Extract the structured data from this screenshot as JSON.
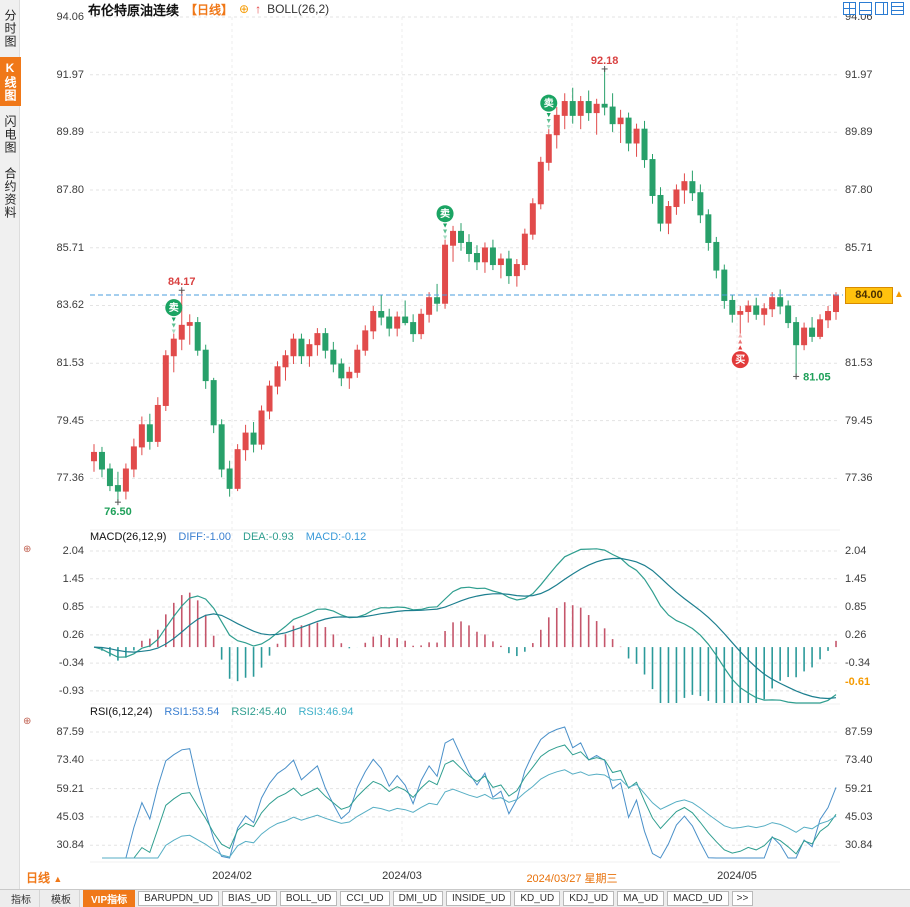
{
  "header": {
    "symbol": "布伦特原油连续",
    "period": "【日线】",
    "add_icon": "⊕",
    "trend_icon": "↑",
    "overlay_indicator": "BOLL(26,2)"
  },
  "sidebar": {
    "items": [
      {
        "label": "分时图",
        "selected": false
      },
      {
        "label": "K线图",
        "selected": true
      },
      {
        "label": "闪电图",
        "selected": false
      },
      {
        "label": "合约资料",
        "selected": false
      }
    ]
  },
  "header_layout_icons": [
    "layout-grid-icon",
    "layout-two-row-icon",
    "layout-two-col-icon",
    "layout-rows-icon"
  ],
  "x_axis": {
    "labels": [
      {
        "text": "2024/02",
        "highlight": false
      },
      {
        "text": "2024/03",
        "highlight": false
      },
      {
        "text": "2024/03/27 星期三",
        "highlight": true
      },
      {
        "text": "2024/05",
        "highlight": false
      }
    ]
  },
  "period_selector": {
    "label": "日线",
    "arrow": "▲"
  },
  "footer": {
    "tabs": [
      {
        "label": "指标"
      },
      {
        "label": "模板"
      }
    ],
    "vip_tab": "VIP指标",
    "indicators": [
      "BARUPDN_UD",
      "BIAS_UD",
      "BOLL_UD",
      "CCI_UD",
      "DMI_UD",
      "INSIDE_UD",
      "KD_UD",
      "KDJ_UD",
      "MA_UD",
      "MACD_UD"
    ],
    "more": ">>"
  },
  "theme": {
    "up": "#e14b4b",
    "down": "#28a06a",
    "sell": "#1ba463",
    "buy": "#e23b3b",
    "accent_orange": "#f07818",
    "badge_bg": "#ffc20e",
    "blue": "#3a7fd0",
    "teal": "#2f9e8f",
    "price_line": "#4a9ede",
    "grid": "#e3e3e3"
  },
  "chart_data": [
    {
      "type": "candlestick",
      "title": "布伦特原油连续 日线",
      "y_ticks": [
        "94.06",
        "91.97",
        "89.89",
        "87.80",
        "85.71",
        "83.62",
        "81.53",
        "79.45",
        "77.36"
      ],
      "current_price": "84.00",
      "candles": [
        [
          78.0,
          78.6,
          77.6,
          78.3
        ],
        [
          78.3,
          78.5,
          77.4,
          77.7
        ],
        [
          77.7,
          77.9,
          76.9,
          77.1
        ],
        [
          77.1,
          77.6,
          76.5,
          76.9
        ],
        [
          76.9,
          77.9,
          76.6,
          77.7
        ],
        [
          77.7,
          78.8,
          77.4,
          78.5
        ],
        [
          78.5,
          79.6,
          78.2,
          79.3
        ],
        [
          79.3,
          79.7,
          78.4,
          78.7
        ],
        [
          78.7,
          80.3,
          78.5,
          80.0
        ],
        [
          80.0,
          82.0,
          79.8,
          81.8
        ],
        [
          81.8,
          82.6,
          81.2,
          82.4
        ],
        [
          82.4,
          84.17,
          82.0,
          82.9
        ],
        [
          82.9,
          83.3,
          82.2,
          83.0
        ],
        [
          83.0,
          83.2,
          81.8,
          82.0
        ],
        [
          82.0,
          82.2,
          80.6,
          80.9
        ],
        [
          80.9,
          81.0,
          79.0,
          79.3
        ],
        [
          79.3,
          79.5,
          77.4,
          77.7
        ],
        [
          77.7,
          78.0,
          76.7,
          77.0
        ],
        [
          77.0,
          78.6,
          76.9,
          78.4
        ],
        [
          78.4,
          79.3,
          78.0,
          79.0
        ],
        [
          79.0,
          79.4,
          78.3,
          78.6
        ],
        [
          78.6,
          80.0,
          78.4,
          79.8
        ],
        [
          79.8,
          80.9,
          79.5,
          80.7
        ],
        [
          80.7,
          81.6,
          80.4,
          81.4
        ],
        [
          81.4,
          82.0,
          80.9,
          81.8
        ],
        [
          81.8,
          82.6,
          81.5,
          82.4
        ],
        [
          82.4,
          82.6,
          81.5,
          81.8
        ],
        [
          81.8,
          82.4,
          81.4,
          82.2
        ],
        [
          82.2,
          82.8,
          81.8,
          82.6
        ],
        [
          82.6,
          82.8,
          81.7,
          82.0
        ],
        [
          82.0,
          82.3,
          81.2,
          81.5
        ],
        [
          81.5,
          81.7,
          80.7,
          81.0
        ],
        [
          81.0,
          81.4,
          80.6,
          81.2
        ],
        [
          81.2,
          82.2,
          81.0,
          82.0
        ],
        [
          82.0,
          82.9,
          81.8,
          82.7
        ],
        [
          82.7,
          83.6,
          82.4,
          83.4
        ],
        [
          83.4,
          84.0,
          82.9,
          83.2
        ],
        [
          83.2,
          83.5,
          82.5,
          82.8
        ],
        [
          82.8,
          83.4,
          82.5,
          83.2
        ],
        [
          83.2,
          83.8,
          82.9,
          83.0
        ],
        [
          83.0,
          83.3,
          82.3,
          82.6
        ],
        [
          82.6,
          83.5,
          82.4,
          83.3
        ],
        [
          83.3,
          84.1,
          83.0,
          83.9
        ],
        [
          83.9,
          84.4,
          83.4,
          83.7
        ],
        [
          83.7,
          86.0,
          83.5,
          85.8
        ],
        [
          85.8,
          86.5,
          85.2,
          86.3
        ],
        [
          86.3,
          86.6,
          85.6,
          85.9
        ],
        [
          85.9,
          86.2,
          85.2,
          85.5
        ],
        [
          85.5,
          85.8,
          84.9,
          85.2
        ],
        [
          85.2,
          85.9,
          84.8,
          85.7
        ],
        [
          85.7,
          86.0,
          84.9,
          85.1
        ],
        [
          85.1,
          85.5,
          84.6,
          85.3
        ],
        [
          85.3,
          85.6,
          84.4,
          84.7
        ],
        [
          84.7,
          85.3,
          84.3,
          85.1
        ],
        [
          85.1,
          86.4,
          84.9,
          86.2
        ],
        [
          86.2,
          87.5,
          86.0,
          87.3
        ],
        [
          87.3,
          89.0,
          87.1,
          88.8
        ],
        [
          88.8,
          90.0,
          88.5,
          89.8
        ],
        [
          89.8,
          90.8,
          89.3,
          90.5
        ],
        [
          90.5,
          91.3,
          90.0,
          91.0
        ],
        [
          91.0,
          91.5,
          90.2,
          90.5
        ],
        [
          90.5,
          91.2,
          90.0,
          91.0
        ],
        [
          91.0,
          91.4,
          90.3,
          90.6
        ],
        [
          90.6,
          91.1,
          89.8,
          90.9
        ],
        [
          90.9,
          92.18,
          90.5,
          90.8
        ],
        [
          90.8,
          91.3,
          89.9,
          90.2
        ],
        [
          90.2,
          90.7,
          89.5,
          90.4
        ],
        [
          90.4,
          90.6,
          89.2,
          89.5
        ],
        [
          89.5,
          90.2,
          89.0,
          90.0
        ],
        [
          90.0,
          90.3,
          88.6,
          88.9
        ],
        [
          88.9,
          89.1,
          87.3,
          87.6
        ],
        [
          87.6,
          87.9,
          86.3,
          86.6
        ],
        [
          86.6,
          87.4,
          86.2,
          87.2
        ],
        [
          87.2,
          88.0,
          86.9,
          87.8
        ],
        [
          87.8,
          88.4,
          87.3,
          88.1
        ],
        [
          88.1,
          88.5,
          87.4,
          87.7
        ],
        [
          87.7,
          88.0,
          86.6,
          86.9
        ],
        [
          86.9,
          87.1,
          85.6,
          85.9
        ],
        [
          85.9,
          86.1,
          84.6,
          84.9
        ],
        [
          84.9,
          85.1,
          83.5,
          83.8
        ],
        [
          83.8,
          84.0,
          83.0,
          83.3
        ],
        [
          83.3,
          83.6,
          82.6,
          83.4
        ],
        [
          83.4,
          83.8,
          83.0,
          83.6
        ],
        [
          83.6,
          83.9,
          83.1,
          83.3
        ],
        [
          83.3,
          83.7,
          82.9,
          83.5
        ],
        [
          83.5,
          84.1,
          83.2,
          83.9
        ],
        [
          83.9,
          84.2,
          83.3,
          83.6
        ],
        [
          83.6,
          83.8,
          82.8,
          83.0
        ],
        [
          83.0,
          83.2,
          81.05,
          82.2
        ],
        [
          82.2,
          83.0,
          82.0,
          82.8
        ],
        [
          82.8,
          83.2,
          82.3,
          82.5
        ],
        [
          82.5,
          83.3,
          82.4,
          83.1
        ],
        [
          83.1,
          83.6,
          82.8,
          83.4
        ],
        [
          83.4,
          84.1,
          83.1,
          84.0
        ]
      ],
      "signals": [
        {
          "index": 10,
          "type": "sell",
          "label": "卖"
        },
        {
          "index": 44,
          "type": "sell",
          "label": "卖"
        },
        {
          "index": 57,
          "type": "sell",
          "label": "卖"
        },
        {
          "index": 81,
          "type": "buy",
          "label": "买"
        }
      ],
      "annotations": [
        {
          "index": 11,
          "value": 84.17,
          "text": "84.17",
          "color": "#d94141",
          "pos": "above"
        },
        {
          "index": 64,
          "value": 92.18,
          "text": "92.18",
          "color": "#d94141",
          "pos": "above"
        },
        {
          "index": 3,
          "value": 76.5,
          "text": "76.50",
          "color": "#1fa05a",
          "pos": "below"
        },
        {
          "index": 88,
          "value": 81.05,
          "text": "81.05",
          "color": "#1fa05a",
          "pos": "right"
        }
      ]
    },
    {
      "type": "macd",
      "title": "MACD(26,12,9)",
      "labels": {
        "diff": "DIFF:-1.00",
        "dea": "DEA:-0.93",
        "macd": "MACD:-0.12"
      },
      "params": [
        26,
        12,
        9
      ],
      "y_ticks": [
        "2.04",
        "1.45",
        "0.85",
        "0.26",
        "-0.34",
        "-0.93"
      ],
      "right_current": "-0.61"
    },
    {
      "type": "rsi-lines",
      "title": "RSI(6,12,24)",
      "labels": [
        "RSI1:53.54",
        "RSI2:45.40",
        "RSI3:46.94"
      ],
      "periods": [
        6,
        12,
        24
      ],
      "y_ticks": [
        "87.59",
        "73.40",
        "59.21",
        "45.03",
        "30.84"
      ]
    }
  ]
}
